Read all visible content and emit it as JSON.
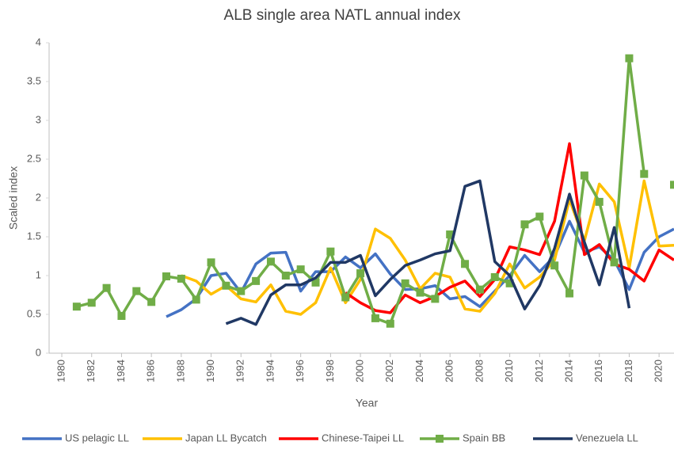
{
  "chart_data": {
    "type": "line",
    "title": "ALB single area NATL annual index",
    "x_label": "Year",
    "y_label": "Scaled index",
    "x": [
      1980,
      1981,
      1982,
      1983,
      1984,
      1985,
      1986,
      1987,
      1988,
      1989,
      1990,
      1991,
      1992,
      1993,
      1994,
      1995,
      1996,
      1997,
      1998,
      1999,
      2000,
      2001,
      2002,
      2003,
      2004,
      2005,
      2006,
      2007,
      2008,
      2009,
      2010,
      2011,
      2012,
      2013,
      2014,
      2015,
      2016,
      2017,
      2018,
      2019,
      2020,
      2021
    ],
    "xlim": [
      1979.15,
      2021
    ],
    "xticks": [
      1980,
      1982,
      1984,
      1986,
      1988,
      1990,
      1992,
      1994,
      1996,
      1998,
      2000,
      2002,
      2004,
      2006,
      2008,
      2010,
      2012,
      2014,
      2016,
      2018,
      2020
    ],
    "ylim": [
      0,
      4
    ],
    "yticks": [
      0,
      0.5,
      1,
      1.5,
      2,
      2.5,
      3,
      3.5,
      4
    ],
    "grid": false,
    "legend": "bottom",
    "series": [
      {
        "name": "US pelagic LL",
        "color": "#4472c4",
        "values": [
          null,
          null,
          null,
          null,
          null,
          null,
          null,
          0.47,
          0.56,
          0.7,
          1.0,
          1.03,
          0.78,
          1.15,
          1.29,
          1.3,
          0.8,
          1.05,
          1.05,
          1.24,
          1.1,
          1.28,
          1.02,
          0.82,
          0.83,
          0.87,
          0.7,
          0.73,
          0.6,
          0.8,
          1.0,
          1.26,
          1.05,
          1.25,
          1.7,
          1.3,
          1.37,
          1.2,
          0.82,
          1.3,
          1.5,
          1.6
        ]
      },
      {
        "name": "Japan LL Bycatch",
        "color": "#ffc000",
        "values": [
          null,
          null,
          null,
          null,
          null,
          null,
          null,
          null,
          1.0,
          0.93,
          0.76,
          0.87,
          0.7,
          0.66,
          0.88,
          0.54,
          0.5,
          0.65,
          1.1,
          0.65,
          0.95,
          1.6,
          1.48,
          1.2,
          0.83,
          1.03,
          0.98,
          0.57,
          0.54,
          0.77,
          1.15,
          0.84,
          0.98,
          1.2,
          1.98,
          1.45,
          2.18,
          1.95,
          1.1,
          2.22,
          1.38,
          1.39
        ]
      },
      {
        "name": "Chinese-Taipei LL",
        "color": "#ff0000",
        "values": [
          null,
          null,
          null,
          null,
          null,
          null,
          null,
          null,
          null,
          null,
          null,
          null,
          null,
          null,
          null,
          null,
          null,
          null,
          null,
          0.78,
          0.65,
          0.55,
          0.52,
          0.75,
          0.65,
          0.73,
          0.85,
          0.93,
          0.73,
          0.95,
          1.37,
          1.33,
          1.27,
          1.7,
          2.7,
          1.27,
          1.4,
          1.15,
          1.08,
          0.93,
          1.33,
          1.2
        ]
      },
      {
        "name": "Spain BB",
        "color": "#70ad47",
        "marker": "square",
        "values": [
          null,
          0.6,
          0.65,
          0.84,
          0.48,
          0.8,
          0.66,
          0.99,
          0.96,
          0.69,
          1.17,
          0.87,
          0.8,
          0.93,
          1.18,
          1.0,
          1.08,
          0.91,
          1.31,
          0.72,
          1.03,
          0.45,
          0.38,
          0.9,
          0.78,
          0.7,
          1.53,
          1.15,
          0.82,
          0.98,
          0.9,
          1.66,
          1.76,
          1.13,
          0.77,
          2.29,
          1.95,
          1.17,
          3.8,
          2.31,
          null,
          2.17
        ]
      },
      {
        "name": "Venezuela LL",
        "color": "#203864",
        "values": [
          null,
          null,
          null,
          null,
          null,
          null,
          null,
          null,
          null,
          null,
          null,
          0.38,
          0.45,
          0.37,
          0.75,
          0.88,
          0.88,
          0.97,
          1.17,
          1.17,
          1.26,
          0.74,
          0.95,
          1.13,
          1.2,
          1.28,
          1.32,
          2.15,
          2.22,
          1.18,
          1.0,
          0.57,
          0.87,
          1.35,
          2.05,
          1.43,
          0.88,
          1.62,
          0.58,
          null,
          null,
          null
        ]
      }
    ]
  }
}
